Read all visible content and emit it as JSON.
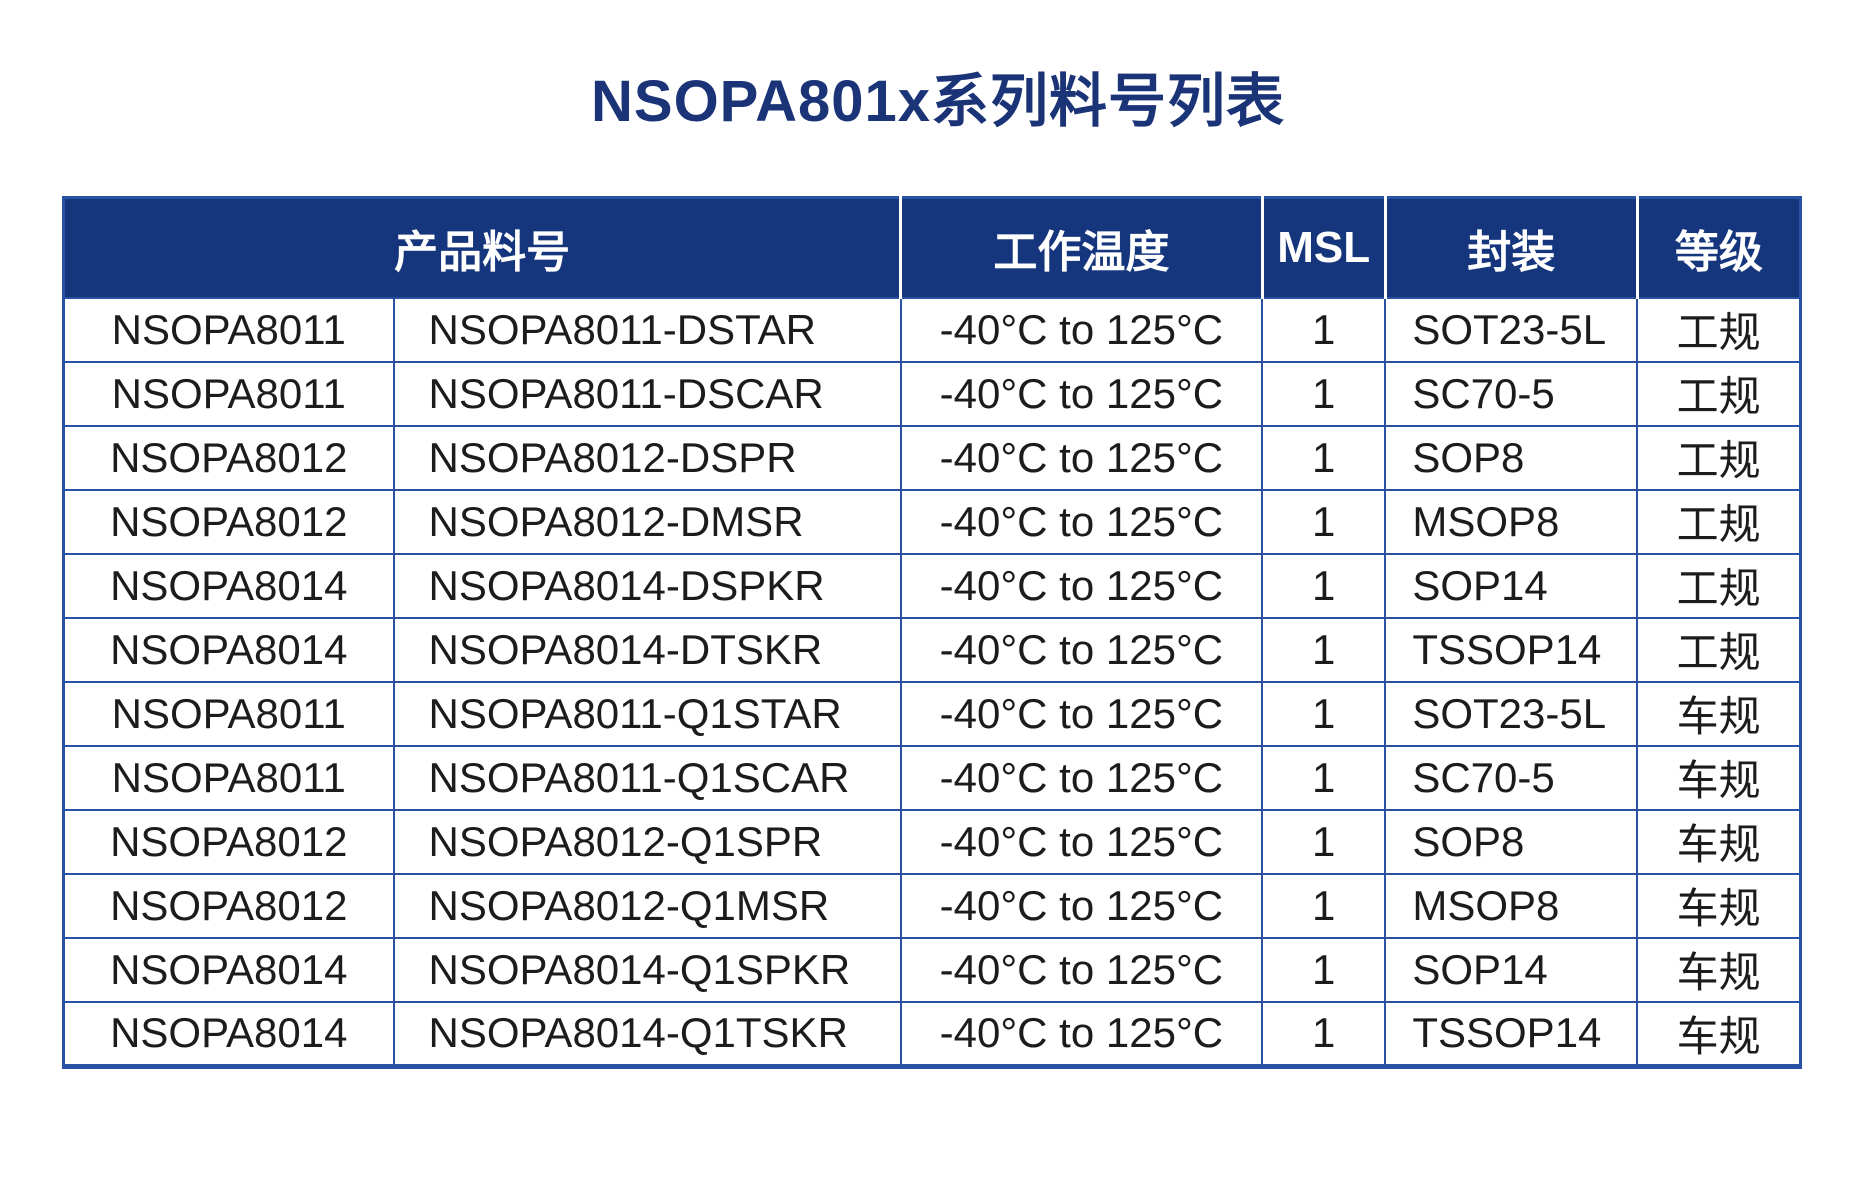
{
  "page": {
    "title": "NSOPA801x系列料号列表"
  },
  "colors": {
    "title_text": "#1b3478",
    "header_bg": "#15357d",
    "header_text": "#ffffff",
    "grid_line": "#2a52a3",
    "body_text": "#1c1c1c",
    "page_bg": "#ffffff"
  },
  "table": {
    "headers": [
      {
        "label": "产品料号"
      },
      {
        "label": "工作温度"
      },
      {
        "label": "MSL"
      },
      {
        "label": "封装"
      },
      {
        "label": "等级"
      }
    ],
    "rows": [
      {
        "series": "NSOPA8011",
        "part_number": "NSOPA8011-DSTAR",
        "operating_temp": "-40°C to 125°C",
        "msl": "1",
        "package": "SOT23-5L",
        "grade": "工规"
      },
      {
        "series": "NSOPA8011",
        "part_number": "NSOPA8011-DSCAR",
        "operating_temp": "-40°C to 125°C",
        "msl": "1",
        "package": "SC70-5",
        "grade": "工规"
      },
      {
        "series": "NSOPA8012",
        "part_number": "NSOPA8012-DSPR",
        "operating_temp": "-40°C to 125°C",
        "msl": "1",
        "package": "SOP8",
        "grade": "工规"
      },
      {
        "series": "NSOPA8012",
        "part_number": "NSOPA8012-DMSR",
        "operating_temp": "-40°C to 125°C",
        "msl": "1",
        "package": "MSOP8",
        "grade": "工规"
      },
      {
        "series": "NSOPA8014",
        "part_number": "NSOPA8014-DSPKR",
        "operating_temp": "-40°C to 125°C",
        "msl": "1",
        "package": "SOP14",
        "grade": "工规"
      },
      {
        "series": "NSOPA8014",
        "part_number": "NSOPA8014-DTSKR",
        "operating_temp": "-40°C to 125°C",
        "msl": "1",
        "package": "TSSOP14",
        "grade": "工规"
      },
      {
        "series": "NSOPA8011",
        "part_number": "NSOPA8011-Q1STAR",
        "operating_temp": "-40°C to 125°C",
        "msl": "1",
        "package": "SOT23-5L",
        "grade": "车规"
      },
      {
        "series": "NSOPA8011",
        "part_number": "NSOPA8011-Q1SCAR",
        "operating_temp": "-40°C to 125°C",
        "msl": "1",
        "package": "SC70-5",
        "grade": "车规"
      },
      {
        "series": "NSOPA8012",
        "part_number": "NSOPA8012-Q1SPR",
        "operating_temp": "-40°C to 125°C",
        "msl": "1",
        "package": "SOP8",
        "grade": "车规"
      },
      {
        "series": "NSOPA8012",
        "part_number": "NSOPA8012-Q1MSR",
        "operating_temp": "-40°C to 125°C",
        "msl": "1",
        "package": "MSOP8",
        "grade": "车规"
      },
      {
        "series": "NSOPA8014",
        "part_number": "NSOPA8014-Q1SPKR",
        "operating_temp": "-40°C to 125°C",
        "msl": "1",
        "package": "SOP14",
        "grade": "车规"
      },
      {
        "series": "NSOPA8014",
        "part_number": "NSOPA8014-Q1TSKR",
        "operating_temp": "-40°C to 125°C",
        "msl": "1",
        "package": "TSSOP14",
        "grade": "车规"
      }
    ]
  }
}
